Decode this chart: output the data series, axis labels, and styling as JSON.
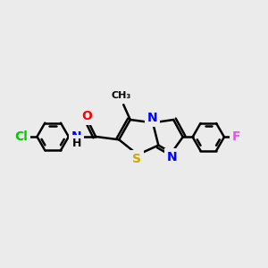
{
  "background_color": "#ebebeb",
  "bond_color": "#000000",
  "bond_width": 1.8,
  "atom_colors": {
    "N": "#0000ff",
    "O": "#ff0000",
    "S": "#ccaa00",
    "Cl": "#00cc00",
    "F": "#ff44ff",
    "C": "#000000",
    "H": "#000000"
  },
  "figsize": [
    3.0,
    3.0
  ],
  "dpi": 100,
  "xlim": [
    -3.5,
    3.5
  ],
  "ylim": [
    -2.0,
    2.0
  ]
}
